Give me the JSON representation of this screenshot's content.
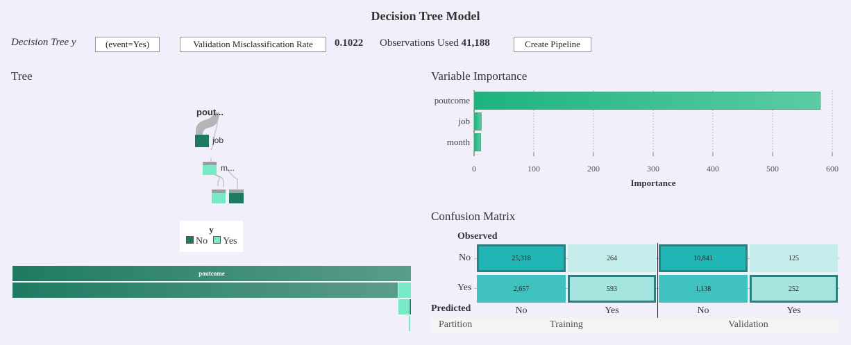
{
  "page": {
    "title": "Decision Tree Model",
    "model_label": "Decision Tree y",
    "event_button": "(event=Yes)",
    "metric_button": "Validation Misclassification Rate",
    "metric_value": "0.1022",
    "observations_label": "Observations Used",
    "observations_value": "41,188",
    "pipeline_button": "Create Pipeline"
  },
  "tree": {
    "title": "Tree",
    "root_label": "pout...",
    "node2_label": "job",
    "node3_label": "m...",
    "legend_title": "y",
    "legend_items": [
      {
        "label": "No",
        "color": "#1f7a62"
      },
      {
        "label": "Yes",
        "color": "#78e9c5"
      }
    ],
    "icicle_root_label": "poutcome"
  },
  "variable_importance": {
    "title": "Variable Importance",
    "xlabel": "Importance",
    "colors": {
      "bar": "#1db37e",
      "bar_light": "#5ccba4"
    }
  },
  "chart_data": {
    "type": "bar",
    "orientation": "horizontal",
    "categories": [
      "poutcome",
      "job",
      "month"
    ],
    "values": [
      580,
      12,
      11
    ],
    "xlabel": "Importance",
    "xlim": [
      0,
      600
    ],
    "xticks": [
      "0",
      "100",
      "200",
      "300",
      "400",
      "500",
      "600"
    ],
    "grid": true
  },
  "confusion_matrix": {
    "title": "Confusion Matrix",
    "observed_label": "Observed",
    "predicted_label": "Predicted",
    "partition_label": "Partition",
    "row_labels": [
      "No",
      "Yes"
    ],
    "col_labels": [
      "No",
      "Yes",
      "No",
      "Yes"
    ],
    "partitions": [
      "Training",
      "Validation"
    ],
    "training": [
      [
        "25,318",
        "264"
      ],
      [
        "2,657",
        "593"
      ]
    ],
    "validation": [
      [
        "10,841",
        "125"
      ],
      [
        "1,138",
        "252"
      ]
    ],
    "colors": {
      "dark": "#22b5b5",
      "light": "#c4ecea",
      "mid": "#3fc2c0",
      "pale": "#a6e4e0",
      "border": "#2d7f80"
    }
  }
}
